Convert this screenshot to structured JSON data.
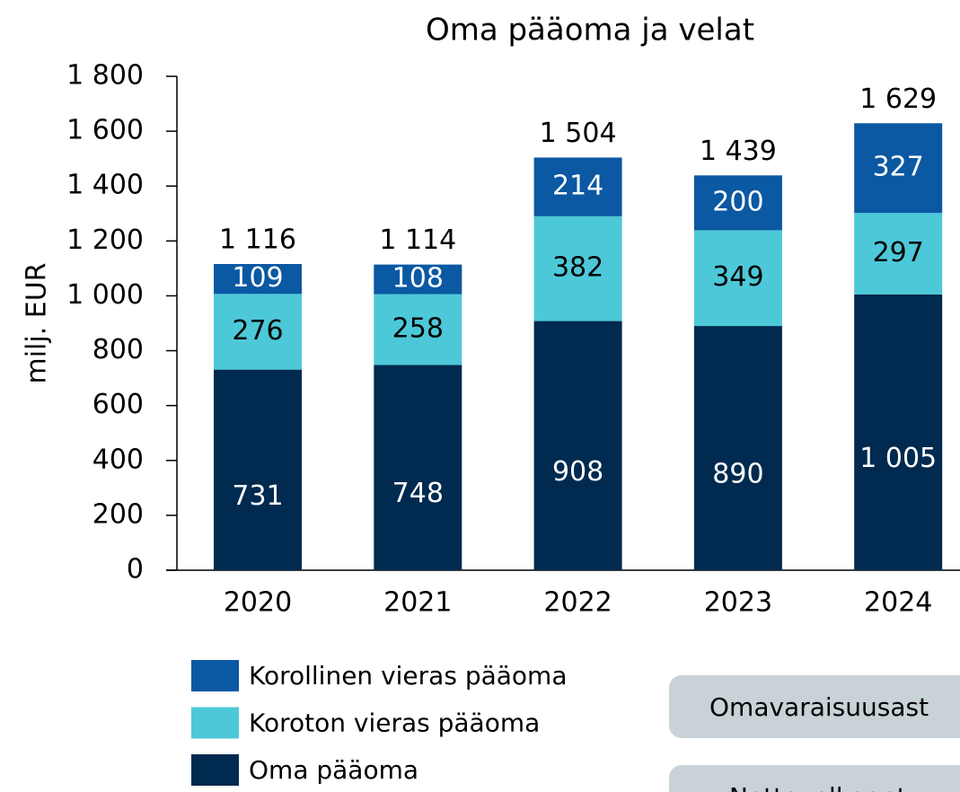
{
  "chart_data": {
    "type": "stacked_bar",
    "title": "Oma pääoma ja velat",
    "y_label": "milj. EUR",
    "categories": [
      "2020",
      "2021",
      "2022",
      "2023",
      "2024"
    ],
    "series": [
      {
        "name": "Oma pääoma",
        "color": "#002a4f",
        "label_color": "#ffffff",
        "values": [
          731,
          748,
          908,
          890,
          1005
        ],
        "value_labels": [
          "731",
          "748",
          "908",
          "890",
          "1 005"
        ]
      },
      {
        "name": "Koroton vieras pääoma",
        "color": "#4dc8d8",
        "label_color": "#000000",
        "values": [
          276,
          258,
          382,
          349,
          297
        ]
      },
      {
        "name": "Korollinen vieras pääoma",
        "color": "#0b58a3",
        "label_color": "#ffffff",
        "values": [
          109,
          108,
          214,
          200,
          327
        ]
      }
    ],
    "totals": [
      1116,
      1114,
      1504,
      1439,
      1629
    ],
    "total_labels": [
      "1 116",
      "1 114",
      "1 504",
      "1 439",
      "1 629"
    ],
    "ylim": [
      0,
      1800
    ],
    "yticks": [
      0,
      200,
      400,
      600,
      800,
      {
        "value": 1000,
        "label": "1 000"
      },
      {
        "value": 1200,
        "label": "1 200"
      },
      {
        "value": 1400,
        "label": "1 400"
      },
      {
        "value": 1600,
        "label": "1 600"
      },
      {
        "value": 1800,
        "label": "1 800"
      }
    ],
    "buttons": [
      "Omavaraisuusast",
      "Nettovelkaantu"
    ]
  }
}
